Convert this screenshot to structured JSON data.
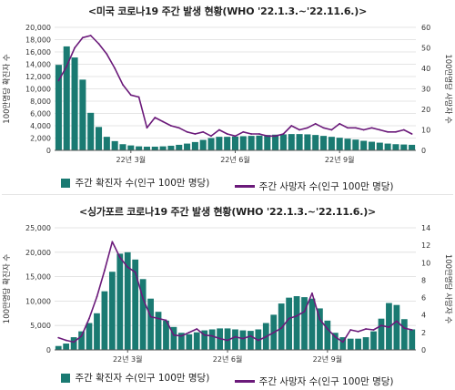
{
  "panels": [
    {
      "title": "<미국 코로나19 주간 발생 현황(WHO '22.1.3.~'22.11.6.)>",
      "legend": {
        "bar_label": "주간 확진자 수(인구 100만 명당)",
        "line_label": "주간 사망자 수(인구 100만 명당)"
      }
    },
    {
      "title": "<싱가포르 코로나19 주간 발생 현황(WHO '22.1.3.~'22.11.6.)>",
      "legend": {
        "bar_label": "주간 확진자 수(인구 100만 명당)",
        "line_label": "주간 사망자 수(인구 100만 명당)"
      }
    }
  ],
  "colors": {
    "bar": "#1a7a72",
    "line": "#6b1a7a",
    "grid": "#dcdcdc",
    "axis": "#555555"
  },
  "chart_data": [
    {
      "type": "bar",
      "title": "<미국 코로나19 주간 발생 현황(WHO '22.1.3.~'22.11.6.)>",
      "ylabel": "100만명당 확진자 수",
      "y2label": "100만명당 사망자 수",
      "ylim": [
        0,
        20000
      ],
      "yticks": [
        0,
        2000,
        4000,
        6000,
        8000,
        10000,
        12000,
        14000,
        16000,
        18000,
        20000
      ],
      "ytick_labels": [
        "0",
        "2,000",
        "4,000",
        "6,000",
        "8,000",
        "10,000",
        "12,000",
        "14,000",
        "16,000",
        "18,000",
        "20,000"
      ],
      "y2lim": [
        0,
        60
      ],
      "y2ticks": [
        0,
        10,
        20,
        30,
        40,
        50,
        60
      ],
      "x_tick_labels": [
        {
          "label": "22년 3월",
          "week": 9
        },
        {
          "label": "22년 6월",
          "week": 22
        },
        {
          "label": "22년 9월",
          "week": 35
        }
      ],
      "series": [
        {
          "name": "주간 확진자 수(인구 100만 명당)",
          "kind": "bar",
          "values": [
            13900,
            16900,
            15100,
            11500,
            6100,
            3800,
            2200,
            1500,
            1000,
            800,
            650,
            600,
            600,
            650,
            750,
            900,
            1100,
            1350,
            1700,
            2000,
            2200,
            2200,
            2250,
            2300,
            2350,
            2400,
            2500,
            2550,
            2600,
            2650,
            2650,
            2600,
            2500,
            2350,
            2200,
            2050,
            1900,
            1750,
            1550,
            1400,
            1250,
            1100,
            1000,
            950,
            900
          ]
        },
        {
          "name": "주간 사망자 수(인구 100만 명당)",
          "kind": "line",
          "axis": "right",
          "values": [
            34,
            41,
            50,
            55,
            56,
            52,
            47,
            40,
            32,
            27,
            26,
            11,
            16,
            14,
            12,
            11,
            9,
            8,
            9,
            7,
            10,
            8,
            7,
            9,
            8,
            8,
            7,
            7,
            8,
            12,
            10,
            11,
            13,
            11,
            10,
            13,
            11,
            11,
            10,
            11,
            10,
            9,
            9,
            10,
            8
          ]
        }
      ]
    },
    {
      "type": "bar",
      "title": "<싱가포르 코로나19 주간 발생 현황(WHO '22.1.3.~'22.11.6.)>",
      "ylabel": "100만명당 확진자 수",
      "y2label": "100만명당 사망자 수",
      "ylim": [
        0,
        25000
      ],
      "yticks": [
        0,
        5000,
        10000,
        15000,
        20000,
        25000
      ],
      "ytick_labels": [
        "0",
        "5,000",
        "10,000",
        "15,000",
        "20,000",
        "25,000"
      ],
      "y2lim": [
        0,
        14
      ],
      "y2ticks": [
        0,
        2,
        4,
        6,
        8,
        10,
        12,
        14
      ],
      "x_tick_labels": [
        {
          "label": "22년 3월",
          "week": 9
        },
        {
          "label": "22년 6월",
          "week": 22
        },
        {
          "label": "22년 9월",
          "week": 35
        }
      ],
      "series": [
        {
          "name": "주간 확진자 수(인구 100만 명당)",
          "kind": "bar",
          "values": [
            800,
            1300,
            2600,
            3800,
            5500,
            7500,
            12000,
            16000,
            19700,
            20000,
            18500,
            14500,
            10500,
            7800,
            6000,
            4700,
            3500,
            3200,
            3600,
            4000,
            4200,
            4400,
            4400,
            4200,
            4000,
            3900,
            4200,
            5500,
            7200,
            9500,
            10700,
            11000,
            10800,
            10500,
            8500,
            6000,
            3500,
            2600,
            2300,
            2300,
            2600,
            3800,
            6400,
            9600,
            9200,
            6300,
            4200
          ]
        },
        {
          "name": "주간 사망자 수(인구 100만 명당)",
          "kind": "line",
          "axis": "right",
          "values": [
            1.4,
            1.1,
            0.9,
            1.6,
            3.6,
            6.1,
            9.1,
            12.4,
            10.6,
            9.5,
            8.9,
            5.9,
            3.8,
            3.6,
            3.4,
            1.7,
            1.6,
            2.0,
            2.4,
            1.7,
            1.6,
            1.3,
            1.1,
            1.5,
            1.3,
            1.6,
            1.1,
            1.5,
            2.0,
            2.5,
            3.6,
            3.9,
            4.4,
            6.5,
            3.5,
            2.4,
            1.5,
            0.9,
            2.3,
            2.1,
            2.4,
            2.3,
            2.8,
            2.6,
            3.3,
            2.5,
            2.3
          ]
        }
      ]
    }
  ]
}
